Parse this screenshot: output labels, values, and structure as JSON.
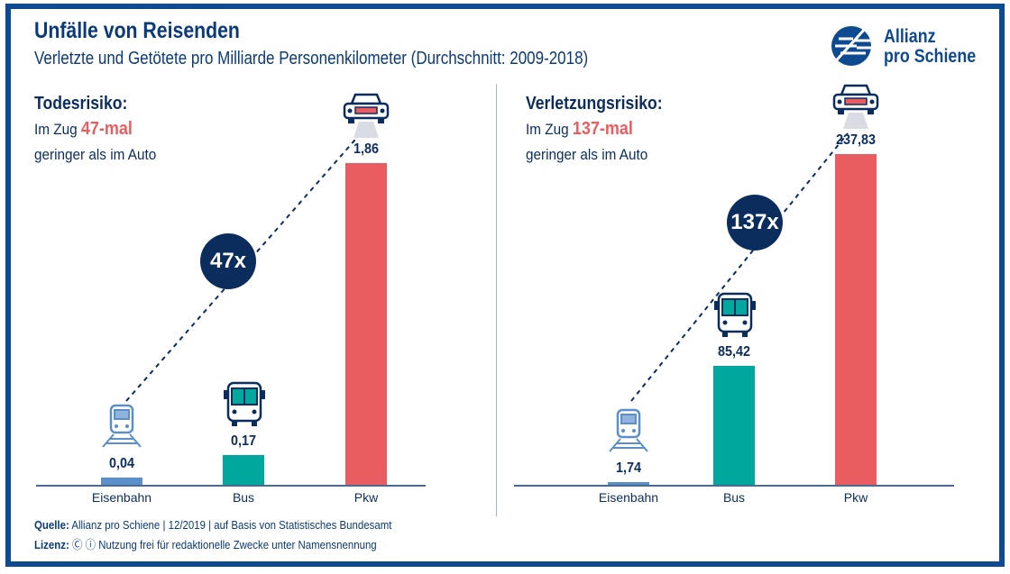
{
  "header": {
    "title": "Unfälle von Reisenden",
    "subtitle": "Verletzte und Getötete pro Milliarde Personenkilometer (Durchschnitt: 2009-2018)",
    "logo_line1": "Allianz",
    "logo_line2": "pro Schiene"
  },
  "colors": {
    "eisenbahn": "#5b8fc9",
    "bus": "#00a79d",
    "pkw": "#e95d60",
    "navy": "#0b2d5e"
  },
  "chart_data": [
    {
      "type": "bar",
      "title": "Todesrisiko:",
      "text_pre": "Im Zug",
      "highlight": "47-mal",
      "text_post": "geringer als im Auto",
      "ratio_badge": "47x",
      "categories": [
        "Eisenbahn",
        "Bus",
        "Pkw"
      ],
      "values": [
        0.04,
        0.17,
        1.86
      ],
      "labels": [
        "0,04",
        "0,17",
        "1,86"
      ],
      "ylim": [
        0,
        1.86
      ]
    },
    {
      "type": "bar",
      "title": "Verletzungsrisiko:",
      "text_pre": "Im Zug",
      "highlight": "137-mal",
      "text_post": "geringer als im Auto",
      "ratio_badge": "137x",
      "categories": [
        "Eisenbahn",
        "Bus",
        "Pkw"
      ],
      "values": [
        1.74,
        85.42,
        237.83
      ],
      "labels": [
        "1,74",
        "85,42",
        "237,83"
      ],
      "ylim": [
        0,
        237.83
      ]
    }
  ],
  "footer": {
    "source_label": "Quelle:",
    "source": "Allianz pro Schiene | 12/2019 | auf Basis von Statistisches Bundesamt",
    "license_label": "Lizenz:",
    "license": "Nutzung frei für redaktionelle Zwecke unter Namensnennung"
  }
}
